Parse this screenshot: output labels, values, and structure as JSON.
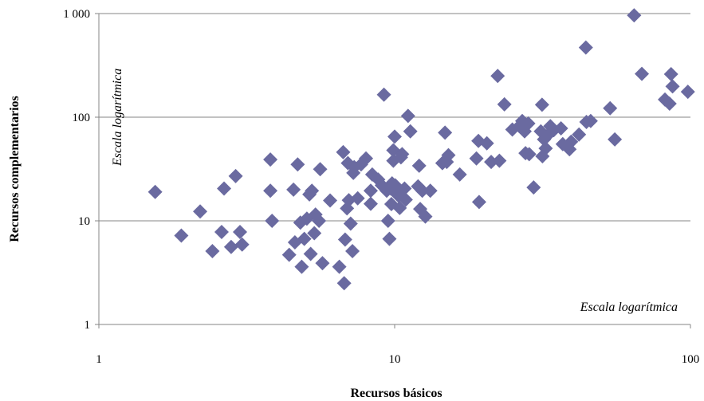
{
  "chart_data": {
    "type": "scatter",
    "xlabel": "Recursos básicos",
    "ylabel": "Recursos complementarios",
    "x_scale": "log",
    "y_scale": "log",
    "xlim": [
      1,
      100
    ],
    "ylim": [
      1,
      1000
    ],
    "x_ticks": [
      {
        "value": 1,
        "label": "1"
      },
      {
        "value": 10,
        "label": "10"
      },
      {
        "value": 100,
        "label": "100"
      }
    ],
    "y_ticks": [
      {
        "value": 1,
        "label": "1"
      },
      {
        "value": 10,
        "label": "10"
      },
      {
        "value": 100,
        "label": "100"
      },
      {
        "value": 1000,
        "label": "1 000"
      }
    ],
    "grid": {
      "horizontal": true,
      "vertical": false
    },
    "marker": {
      "shape": "diamond",
      "color": "#6A6AA0"
    },
    "annotations": [
      {
        "text": "Escala logarítmica",
        "applies_to": "y-axis"
      },
      {
        "text": "Escala logarítmica",
        "applies_to": "x-axis"
      }
    ],
    "points": [
      [
        1.55,
        19
      ],
      [
        1.9,
        7.2
      ],
      [
        2.2,
        12.3
      ],
      [
        2.42,
        5.1
      ],
      [
        2.6,
        7.8
      ],
      [
        2.65,
        20.5
      ],
      [
        2.8,
        5.6
      ],
      [
        2.9,
        27
      ],
      [
        3.0,
        7.8
      ],
      [
        3.05,
        5.9
      ],
      [
        3.8,
        39
      ],
      [
        3.85,
        10
      ],
      [
        3.8,
        19.5
      ],
      [
        4.4,
        4.7
      ],
      [
        4.55,
        20
      ],
      [
        4.6,
        6.2
      ],
      [
        4.7,
        35
      ],
      [
        4.8,
        9.6
      ],
      [
        4.85,
        3.6
      ],
      [
        4.95,
        6.7
      ],
      [
        5.05,
        10.5
      ],
      [
        5.15,
        18
      ],
      [
        5.2,
        4.8
      ],
      [
        5.25,
        19.5
      ],
      [
        5.35,
        7.6
      ],
      [
        5.4,
        11.5
      ],
      [
        5.6,
        31.5
      ],
      [
        5.55,
        10
      ],
      [
        5.7,
        3.9
      ],
      [
        6.05,
        15.7
      ],
      [
        6.5,
        3.6
      ],
      [
        6.7,
        46
      ],
      [
        6.75,
        2.5
      ],
      [
        6.8,
        6.6
      ],
      [
        6.9,
        13.2
      ],
      [
        6.95,
        36
      ],
      [
        7.0,
        15.8
      ],
      [
        7.1,
        9.4
      ],
      [
        7.2,
        5.1
      ],
      [
        7.25,
        29
      ],
      [
        7.3,
        33
      ],
      [
        7.5,
        16.5
      ],
      [
        7.7,
        35
      ],
      [
        8.0,
        40
      ],
      [
        8.3,
        19.5
      ],
      [
        8.3,
        14.6
      ],
      [
        8.4,
        28
      ],
      [
        8.8,
        25
      ],
      [
        9.05,
        22
      ],
      [
        9.2,
        165
      ],
      [
        9.4,
        19.5
      ],
      [
        9.5,
        10
      ],
      [
        9.6,
        6.7
      ],
      [
        9.7,
        20.5
      ],
      [
        9.75,
        14.5
      ],
      [
        9.8,
        23
      ],
      [
        9.9,
        38
      ],
      [
        9.9,
        48
      ],
      [
        10.0,
        65
      ],
      [
        10.05,
        22
      ],
      [
        10.2,
        18
      ],
      [
        10.3,
        17.5
      ],
      [
        10.4,
        13.3
      ],
      [
        10.5,
        41
      ],
      [
        10.6,
        44
      ],
      [
        10.8,
        20.5
      ],
      [
        10.9,
        16
      ],
      [
        11.1,
        103
      ],
      [
        11.3,
        73
      ],
      [
        12.0,
        21.5
      ],
      [
        12.1,
        34
      ],
      [
        12.2,
        13
      ],
      [
        12.4,
        19.5
      ],
      [
        12.7,
        11
      ],
      [
        13.2,
        19.5
      ],
      [
        14.5,
        36
      ],
      [
        14.8,
        71
      ],
      [
        15.0,
        37
      ],
      [
        15.2,
        43
      ],
      [
        16.6,
        28
      ],
      [
        18.9,
        40
      ],
      [
        19.2,
        59
      ],
      [
        19.3,
        15.2
      ],
      [
        20.5,
        56
      ],
      [
        21.2,
        37
      ],
      [
        22.3,
        250
      ],
      [
        22.6,
        38
      ],
      [
        23.5,
        133
      ],
      [
        25,
        76
      ],
      [
        26.4,
        82
      ],
      [
        27,
        92
      ],
      [
        27.5,
        73
      ],
      [
        27.7,
        45
      ],
      [
        28.3,
        87
      ],
      [
        28.5,
        44
      ],
      [
        29.5,
        21
      ],
      [
        31.2,
        73
      ],
      [
        31.5,
        132
      ],
      [
        31.6,
        42
      ],
      [
        32,
        61
      ],
      [
        32.4,
        50
      ],
      [
        33.1,
        68
      ],
      [
        33.6,
        82
      ],
      [
        34.5,
        75
      ],
      [
        36.5,
        78
      ],
      [
        37,
        55
      ],
      [
        39,
        49
      ],
      [
        39.5,
        58
      ],
      [
        42,
        68
      ],
      [
        44.5,
        90
      ],
      [
        44.3,
        470
      ],
      [
        46,
        92
      ],
      [
        53.5,
        122
      ],
      [
        55.5,
        61
      ],
      [
        64.5,
        960
      ],
      [
        68.5,
        262
      ],
      [
        82,
        148
      ],
      [
        85,
        135
      ],
      [
        86,
        260
      ],
      [
        87,
        198
      ],
      [
        98,
        176
      ]
    ]
  }
}
